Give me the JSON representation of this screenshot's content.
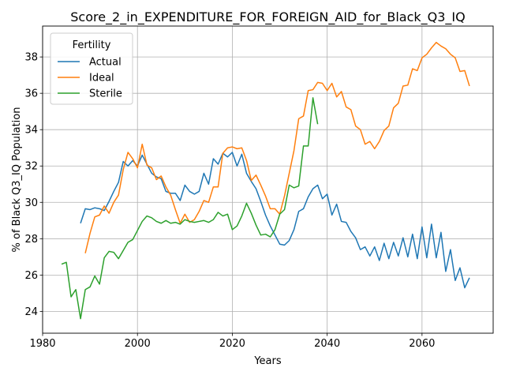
{
  "chart_data": {
    "type": "line",
    "title": "Score_2_in_EXPENDITURE_FOR_FOREIGN_AID_for_Black_Q3_IQ",
    "xlabel": "Years",
    "ylabel": "% of Black Q3_IQ Population",
    "xlim": [
      1980,
      2075
    ],
    "ylim": [
      22.8,
      39.7
    ],
    "xticks": [
      1980,
      2000,
      2020,
      2040,
      2060
    ],
    "yticks": [
      24,
      26,
      28,
      30,
      32,
      34,
      36,
      38
    ],
    "grid": true,
    "legend": {
      "title": "Fertility",
      "placement": "top-left"
    },
    "series": [
      {
        "name": "Actual",
        "color": "#1f77b4",
        "x": [
          1988,
          1989,
          1990,
          1991,
          1992,
          1993,
          1994,
          1995,
          1996,
          1997,
          1998,
          1999,
          2000,
          2001,
          2002,
          2003,
          2004,
          2005,
          2006,
          2007,
          2008,
          2009,
          2010,
          2011,
          2012,
          2013,
          2014,
          2015,
          2016,
          2017,
          2018,
          2019,
          2020,
          2021,
          2022,
          2023,
          2024,
          2025,
          2026,
          2027,
          2028,
          2029,
          2030,
          2031,
          2032,
          2033,
          2034,
          2035,
          2036,
          2037,
          2038,
          2039,
          2040,
          2041,
          2042,
          2043,
          2044,
          2045,
          2046,
          2047,
          2048,
          2049,
          2050,
          2051,
          2052,
          2053,
          2054,
          2055,
          2056,
          2057,
          2058,
          2059,
          2060,
          2061,
          2062,
          2063,
          2064,
          2065,
          2066,
          2067,
          2068,
          2069,
          2070
        ],
        "y": [
          28.85,
          29.65,
          29.6,
          29.7,
          29.65,
          29.55,
          30.05,
          30.6,
          31.1,
          32.25,
          32.0,
          32.3,
          32.0,
          32.6,
          32.1,
          31.6,
          31.4,
          31.3,
          30.6,
          30.5,
          30.5,
          30.1,
          30.95,
          30.6,
          30.45,
          30.6,
          31.6,
          31.0,
          32.4,
          32.1,
          32.7,
          32.5,
          32.75,
          32.0,
          32.65,
          31.6,
          31.15,
          30.75,
          30.05,
          29.3,
          28.7,
          28.2,
          27.7,
          27.65,
          27.9,
          28.5,
          29.5,
          29.65,
          30.3,
          30.75,
          30.95,
          30.2,
          30.45,
          29.3,
          29.9,
          28.95,
          28.9,
          28.4,
          28.05,
          27.4,
          27.55,
          27.05,
          27.55,
          26.8,
          27.75,
          26.9,
          27.8,
          27.05,
          28.05,
          27.0,
          28.25,
          26.9,
          28.65,
          26.95,
          28.8,
          26.95,
          28.35,
          26.2,
          27.4,
          25.7,
          26.4,
          25.3,
          25.85
        ]
      },
      {
        "name": "Ideal",
        "color": "#ff7f0e",
        "x": [
          1989,
          1990,
          1991,
          1992,
          1993,
          1994,
          1995,
          1996,
          1997,
          1998,
          1999,
          2000,
          2001,
          2002,
          2003,
          2004,
          2005,
          2006,
          2007,
          2008,
          2009,
          2010,
          2011,
          2012,
          2013,
          2014,
          2015,
          2016,
          2017,
          2018,
          2019,
          2020,
          2021,
          2022,
          2023,
          2024,
          2025,
          2026,
          2027,
          2028,
          2029,
          2030,
          2031,
          2032,
          2033,
          2034,
          2035,
          2036,
          2037,
          2038,
          2039,
          2040,
          2041,
          2042,
          2043,
          2044,
          2045,
          2046,
          2047,
          2048,
          2049,
          2050,
          2051,
          2052,
          2053,
          2054,
          2055,
          2056,
          2057,
          2058,
          2059,
          2060,
          2061,
          2062,
          2063,
          2064,
          2065,
          2066,
          2067,
          2068,
          2069,
          2070
        ],
        "y": [
          27.2,
          28.3,
          29.2,
          29.3,
          29.8,
          29.4,
          30.0,
          30.4,
          31.8,
          32.75,
          32.4,
          31.9,
          33.2,
          32.05,
          31.9,
          31.25,
          31.45,
          30.85,
          30.4,
          29.6,
          28.85,
          29.35,
          28.9,
          29.05,
          29.5,
          30.1,
          30.0,
          30.85,
          30.85,
          32.7,
          33.0,
          33.05,
          32.95,
          33.0,
          32.3,
          31.2,
          31.5,
          30.95,
          30.35,
          29.65,
          29.65,
          29.35,
          30.35,
          31.6,
          32.85,
          34.6,
          34.75,
          36.15,
          36.2,
          36.6,
          36.55,
          36.15,
          36.55,
          35.8,
          36.1,
          35.25,
          35.1,
          34.2,
          34.0,
          33.2,
          33.35,
          32.95,
          33.35,
          33.95,
          34.2,
          35.2,
          35.45,
          36.4,
          36.45,
          37.35,
          37.25,
          37.95,
          38.15,
          38.5,
          38.8,
          38.6,
          38.45,
          38.15,
          37.95,
          37.2,
          37.25,
          36.4
        ]
      },
      {
        "name": "Sterile",
        "color": "#2ca02c",
        "x": [
          1984,
          1985,
          1986,
          1987,
          1988,
          1989,
          1990,
          1991,
          1992,
          1993,
          1994,
          1995,
          1996,
          1997,
          1998,
          1999,
          2000,
          2001,
          2002,
          2003,
          2004,
          2005,
          2006,
          2007,
          2008,
          2009,
          2010,
          2011,
          2012,
          2013,
          2014,
          2015,
          2016,
          2017,
          2018,
          2019,
          2020,
          2021,
          2022,
          2023,
          2024,
          2025,
          2026,
          2027,
          2028,
          2029,
          2030,
          2031,
          2032,
          2033,
          2034,
          2035,
          2036,
          2037,
          2038
        ],
        "y": [
          26.6,
          26.7,
          24.8,
          25.2,
          23.6,
          25.2,
          25.35,
          25.95,
          25.5,
          26.95,
          27.3,
          27.25,
          26.9,
          27.35,
          27.8,
          27.95,
          28.45,
          28.95,
          29.25,
          29.15,
          28.95,
          28.85,
          29.0,
          28.85,
          28.9,
          28.8,
          29.05,
          28.95,
          28.9,
          28.95,
          29.0,
          28.9,
          29.05,
          29.45,
          29.25,
          29.35,
          28.5,
          28.7,
          29.25,
          29.95,
          29.4,
          28.75,
          28.2,
          28.25,
          28.1,
          28.5,
          29.35,
          29.6,
          30.95,
          30.8,
          30.9,
          33.1,
          33.1,
          35.75,
          34.3
        ]
      }
    ]
  }
}
